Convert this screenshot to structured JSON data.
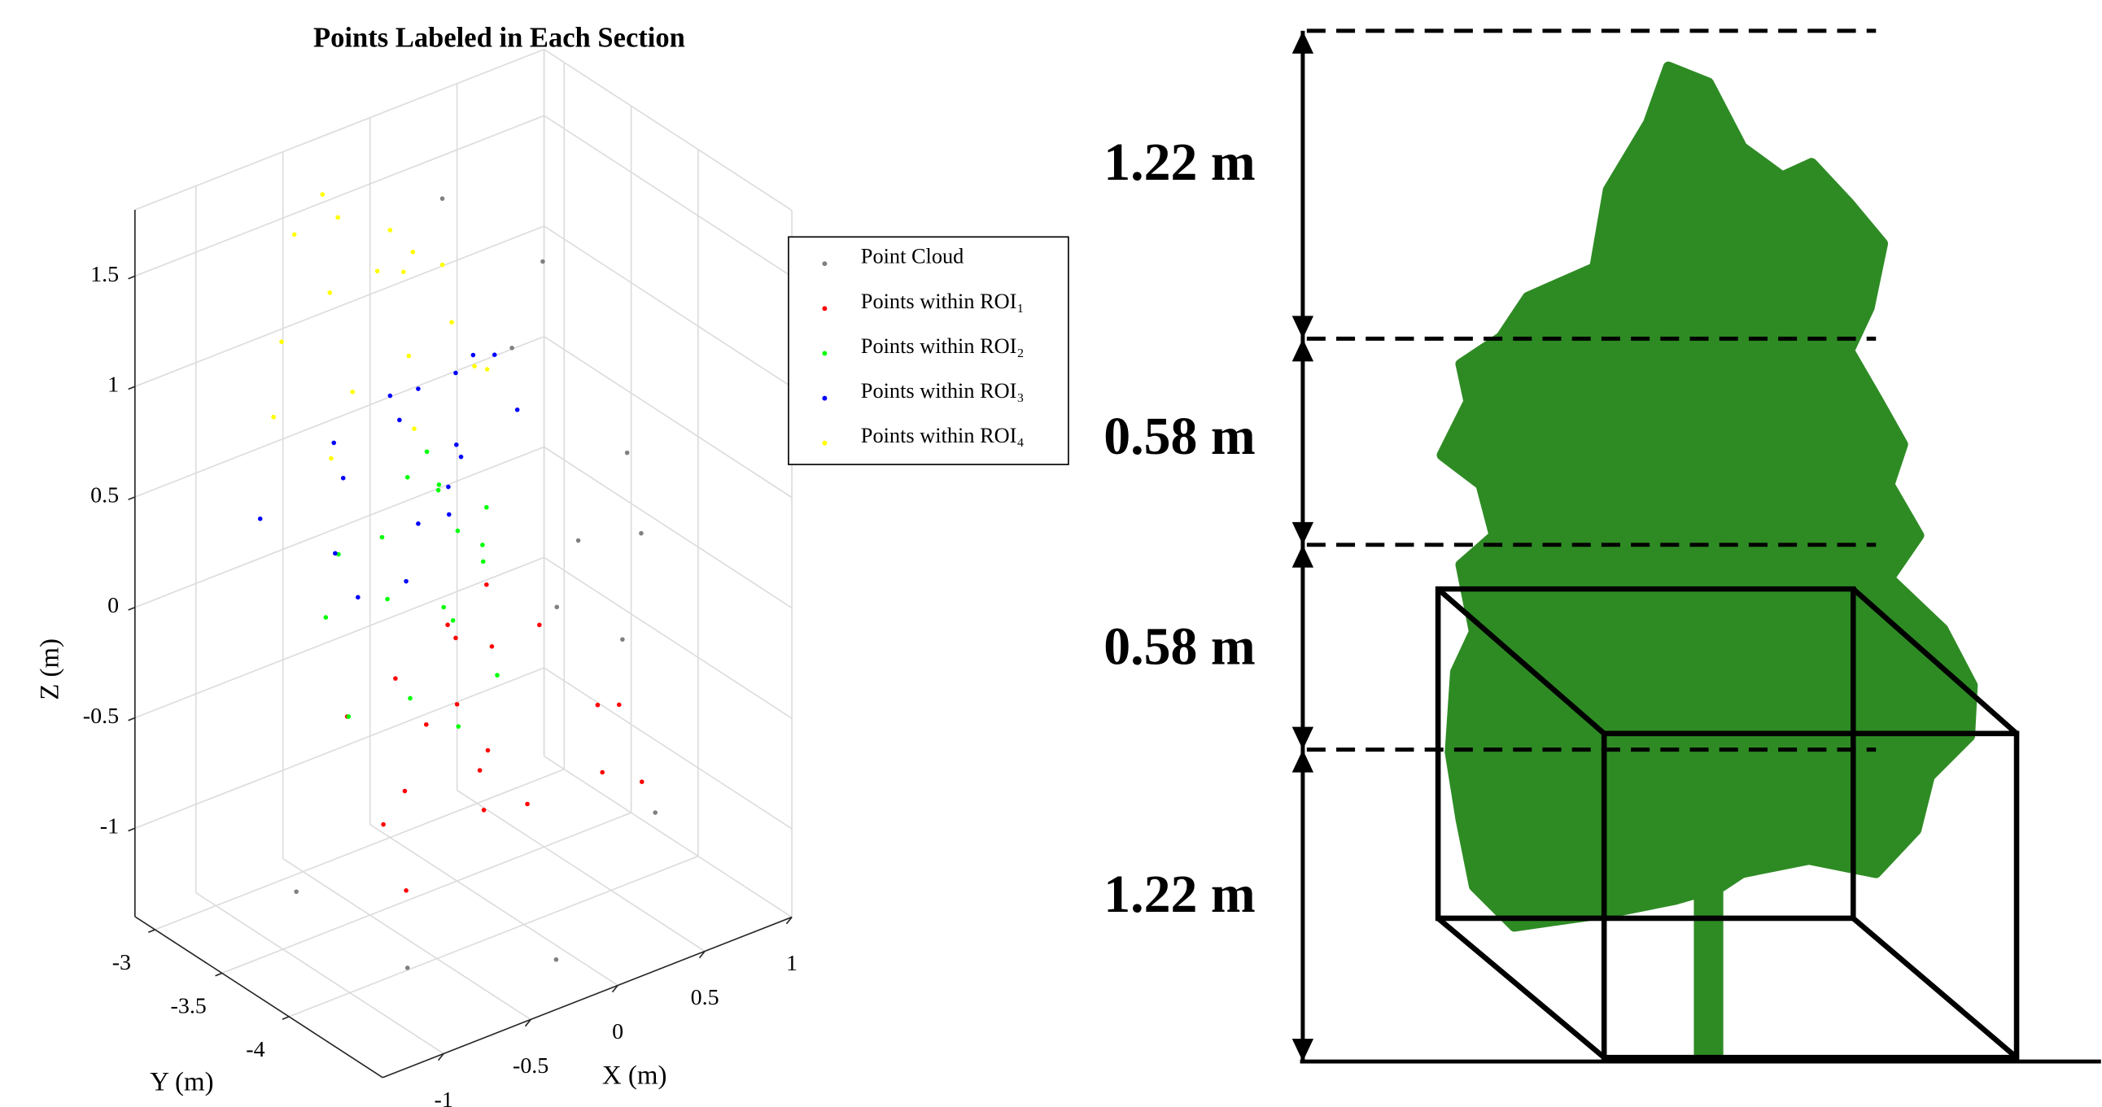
{
  "chart_data": {
    "type": "scatter3d",
    "title": "Points Labeled in Each Section",
    "xlabel": "X (m)",
    "ylabel": "Y (m)",
    "zlabel": "Z (m)",
    "xlim": [
      -1.35,
      1.0
    ],
    "ylim": [
      -4.7,
      -2.85
    ],
    "zlim": [
      -1.4,
      1.8
    ],
    "xticks": [
      -1,
      -0.5,
      0,
      0.5,
      1
    ],
    "yticks": [
      -4,
      -3.5,
      -3
    ],
    "zticks": [
      -1,
      -0.5,
      0,
      0.5,
      1,
      1.5
    ],
    "grid": true,
    "series": [
      {
        "name": "Point Cloud",
        "color": "#808080",
        "x": [
          0.8,
          0.9,
          -0.9,
          0.7,
          0.6,
          0.85,
          -0.2,
          0.75,
          0.95,
          0.3,
          0.65,
          -1.0
        ],
        "y": [
          -3.1,
          -3.6,
          -4.3,
          -3.0,
          -4.2,
          -3.3,
          -4.5,
          -3.9,
          -3.5,
          -3.0,
          -3.4,
          -3.6
        ],
        "z": [
          1.0,
          0.3,
          -1.2,
          0.6,
          -1.0,
          -0.2,
          -1.3,
          0.1,
          -0.6,
          1.4,
          -0.4,
          -1.1
        ]
      },
      {
        "name": "Points within ROI₁",
        "color": "#ff0000",
        "x": [
          -0.3,
          -0.1,
          0.1,
          -0.2,
          0.0,
          0.2,
          0.5,
          0.6,
          0.4,
          0.7,
          -0.5,
          -0.6,
          0.3,
          0.1,
          -0.1,
          0.45,
          0.55,
          -0.4,
          0.25,
          0.0
        ],
        "y": [
          -3.5,
          -3.4,
          -3.6,
          -3.3,
          -3.7,
          -3.5,
          -3.9,
          -4.1,
          -3.2,
          -3.8,
          -3.6,
          -3.9,
          -3.1,
          -3.3,
          -3.8,
          -4.0,
          -3.4,
          -3.2,
          -3.7,
          -3.5
        ],
        "z": [
          -0.9,
          -0.7,
          -0.8,
          -0.5,
          -1.0,
          -0.4,
          -0.6,
          -0.9,
          -0.3,
          -0.7,
          -0.95,
          -1.1,
          -0.55,
          -0.35,
          -0.75,
          -0.85,
          -0.45,
          -0.65,
          -1.05,
          -0.6
        ]
      },
      {
        "name": "Points within ROI₂",
        "color": "#00ff00",
        "x": [
          -0.6,
          -0.4,
          -0.2,
          0.0,
          0.2,
          0.3,
          -0.5,
          -0.1,
          0.1,
          0.4,
          -0.7,
          0.0,
          0.25,
          -0.3,
          0.15,
          0.35,
          -0.45,
          0.05
        ],
        "y": [
          -3.3,
          -3.5,
          -3.2,
          -3.4,
          -3.1,
          -3.3,
          -3.8,
          -3.6,
          -3.0,
          -3.2,
          -3.6,
          -3.8,
          -2.95,
          -3.9,
          -3.5,
          -3.05,
          -3.2,
          -3.3
        ],
        "z": [
          -0.1,
          0.0,
          0.1,
          -0.2,
          0.15,
          -0.05,
          -0.3,
          -0.15,
          0.2,
          0.05,
          -0.4,
          -0.35,
          0.25,
          -0.45,
          0.0,
          -0.1,
          0.1,
          0.3
        ]
      },
      {
        "name": "Points within ROI₃",
        "color": "#0000ff",
        "x": [
          -0.9,
          -0.7,
          -0.5,
          -0.3,
          -0.1,
          0.1,
          0.3,
          0.5,
          -0.8,
          -0.6,
          -0.2,
          0.0,
          0.2,
          0.4,
          0.6,
          -0.4,
          0.15,
          -0.05
        ],
        "y": [
          -3.2,
          -3.5,
          -3.3,
          -3.6,
          -3.2,
          -3.4,
          -3.1,
          -3.3,
          -3.8,
          -3.9,
          -3.7,
          -3.0,
          -2.95,
          -3.1,
          -3.0,
          -3.1,
          -3.3,
          -3.5
        ],
        "z": [
          0.4,
          0.3,
          0.5,
          0.35,
          0.6,
          0.45,
          0.65,
          0.5,
          0.25,
          0.3,
          0.4,
          0.6,
          0.55,
          0.7,
          0.6,
          0.55,
          0.45,
          0.4
        ]
      },
      {
        "name": "Points within ROI₄",
        "color": "#ffff00",
        "x": [
          -0.9,
          -0.7,
          -0.5,
          -0.3,
          -0.2,
          0.0,
          0.2,
          0.3,
          -0.8,
          -0.6,
          -0.4,
          -0.1,
          0.1,
          0.25,
          -0.55,
          -0.35,
          0.0,
          -0.15
        ],
        "y": [
          -3.3,
          -3.1,
          -3.2,
          -3.0,
          -3.4,
          -3.1,
          -3.2,
          -3.0,
          -3.6,
          -3.5,
          -3.7,
          -3.3,
          -3.5,
          -3.4,
          -3.0,
          -2.95,
          -3.0,
          -3.1
        ],
        "z": [
          0.9,
          1.1,
          1.3,
          1.5,
          1.0,
          1.2,
          0.95,
          1.1,
          0.8,
          1.0,
          0.85,
          1.4,
          0.9,
          0.8,
          1.5,
          1.6,
          1.35,
          1.25
        ]
      }
    ]
  },
  "diagram": {
    "dimension_labels": [
      "1.22 m",
      "0.58 m",
      "0.58 m",
      "1.22 m"
    ]
  }
}
